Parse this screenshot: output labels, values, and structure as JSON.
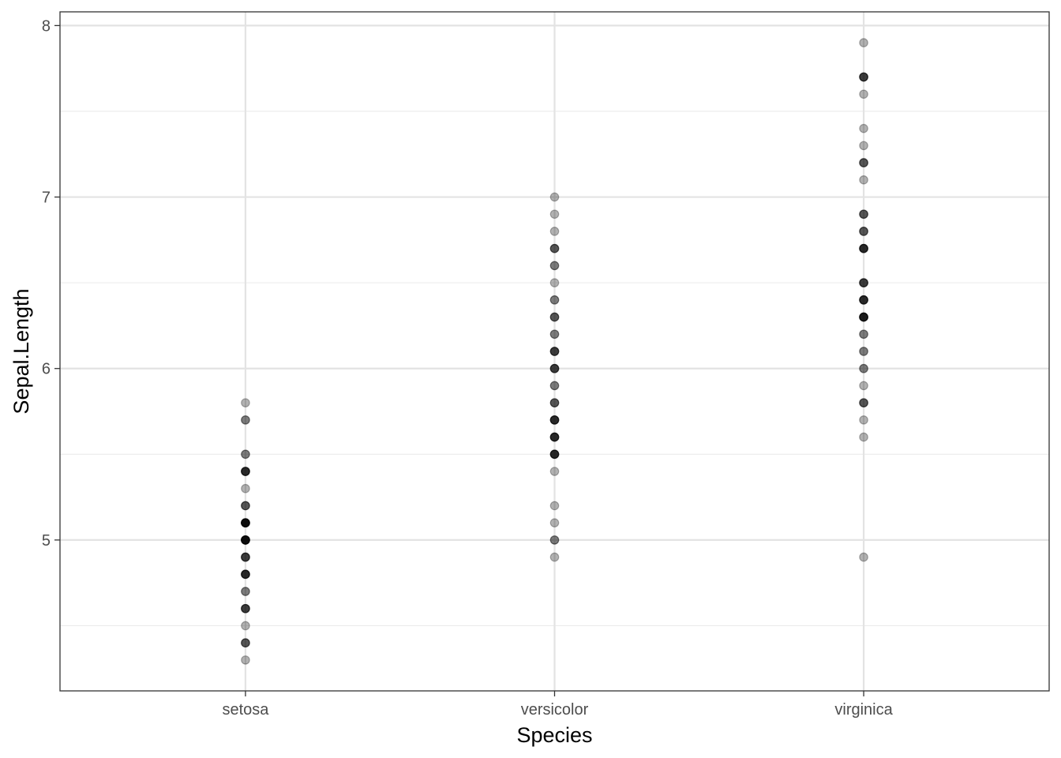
{
  "chart_data": {
    "type": "scatter",
    "title": "",
    "xlabel": "Species",
    "ylabel": "Sepal.Length",
    "categories": [
      "setosa",
      "versicolor",
      "virginica"
    ],
    "ylim": [
      4.12,
      8.08
    ],
    "y_ticks": [
      5,
      6,
      7,
      8
    ],
    "y_tick_labels": [
      "5",
      "6",
      "7",
      "8"
    ],
    "grid": true,
    "point_color": "#000000",
    "point_opacity": 0.3,
    "points": [
      {
        "category": "setosa",
        "y": 5.8,
        "count": 1
      },
      {
        "category": "setosa",
        "y": 5.7,
        "count": 2
      },
      {
        "category": "setosa",
        "y": 5.5,
        "count": 2
      },
      {
        "category": "setosa",
        "y": 5.4,
        "count": 5
      },
      {
        "category": "setosa",
        "y": 5.3,
        "count": 1
      },
      {
        "category": "setosa",
        "y": 5.2,
        "count": 3
      },
      {
        "category": "setosa",
        "y": 5.1,
        "count": 8
      },
      {
        "category": "setosa",
        "y": 5.0,
        "count": 8
      },
      {
        "category": "setosa",
        "y": 4.9,
        "count": 4
      },
      {
        "category": "setosa",
        "y": 4.8,
        "count": 5
      },
      {
        "category": "setosa",
        "y": 4.7,
        "count": 2
      },
      {
        "category": "setosa",
        "y": 4.6,
        "count": 4
      },
      {
        "category": "setosa",
        "y": 4.5,
        "count": 1
      },
      {
        "category": "setosa",
        "y": 4.4,
        "count": 3
      },
      {
        "category": "setosa",
        "y": 4.3,
        "count": 1
      },
      {
        "category": "versicolor",
        "y": 7.0,
        "count": 1
      },
      {
        "category": "versicolor",
        "y": 6.9,
        "count": 1
      },
      {
        "category": "versicolor",
        "y": 6.8,
        "count": 1
      },
      {
        "category": "versicolor",
        "y": 6.7,
        "count": 3
      },
      {
        "category": "versicolor",
        "y": 6.6,
        "count": 2
      },
      {
        "category": "versicolor",
        "y": 6.5,
        "count": 1
      },
      {
        "category": "versicolor",
        "y": 6.4,
        "count": 2
      },
      {
        "category": "versicolor",
        "y": 6.3,
        "count": 3
      },
      {
        "category": "versicolor",
        "y": 6.2,
        "count": 2
      },
      {
        "category": "versicolor",
        "y": 6.1,
        "count": 4
      },
      {
        "category": "versicolor",
        "y": 6.0,
        "count": 4
      },
      {
        "category": "versicolor",
        "y": 5.9,
        "count": 2
      },
      {
        "category": "versicolor",
        "y": 5.8,
        "count": 3
      },
      {
        "category": "versicolor",
        "y": 5.7,
        "count": 5
      },
      {
        "category": "versicolor",
        "y": 5.6,
        "count": 5
      },
      {
        "category": "versicolor",
        "y": 5.5,
        "count": 5
      },
      {
        "category": "versicolor",
        "y": 5.4,
        "count": 1
      },
      {
        "category": "versicolor",
        "y": 5.2,
        "count": 1
      },
      {
        "category": "versicolor",
        "y": 5.1,
        "count": 1
      },
      {
        "category": "versicolor",
        "y": 5.0,
        "count": 2
      },
      {
        "category": "versicolor",
        "y": 4.9,
        "count": 1
      },
      {
        "category": "virginica",
        "y": 7.9,
        "count": 1
      },
      {
        "category": "virginica",
        "y": 7.7,
        "count": 4
      },
      {
        "category": "virginica",
        "y": 7.6,
        "count": 1
      },
      {
        "category": "virginica",
        "y": 7.4,
        "count": 1
      },
      {
        "category": "virginica",
        "y": 7.3,
        "count": 1
      },
      {
        "category": "virginica",
        "y": 7.2,
        "count": 3
      },
      {
        "category": "virginica",
        "y": 7.1,
        "count": 1
      },
      {
        "category": "virginica",
        "y": 6.9,
        "count": 3
      },
      {
        "category": "virginica",
        "y": 6.8,
        "count": 3
      },
      {
        "category": "virginica",
        "y": 6.7,
        "count": 5
      },
      {
        "category": "virginica",
        "y": 6.5,
        "count": 4
      },
      {
        "category": "virginica",
        "y": 6.4,
        "count": 5
      },
      {
        "category": "virginica",
        "y": 6.3,
        "count": 6
      },
      {
        "category": "virginica",
        "y": 6.2,
        "count": 2
      },
      {
        "category": "virginica",
        "y": 6.1,
        "count": 2
      },
      {
        "category": "virginica",
        "y": 6.0,
        "count": 2
      },
      {
        "category": "virginica",
        "y": 5.9,
        "count": 1
      },
      {
        "category": "virginica",
        "y": 5.8,
        "count": 3
      },
      {
        "category": "virginica",
        "y": 5.7,
        "count": 1
      },
      {
        "category": "virginica",
        "y": 5.6,
        "count": 1
      },
      {
        "category": "virginica",
        "y": 4.9,
        "count": 1
      }
    ]
  }
}
